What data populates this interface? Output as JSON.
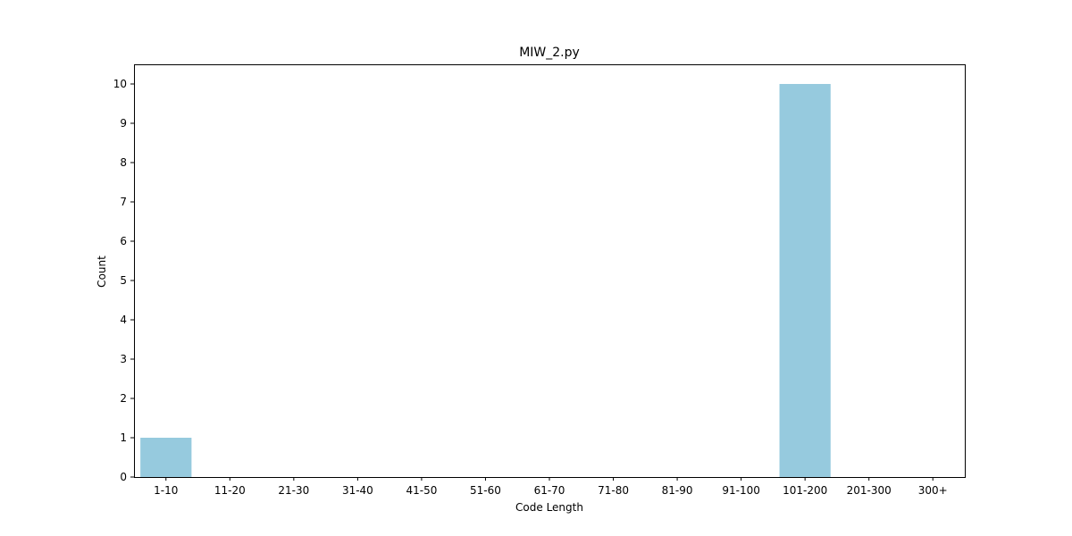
{
  "chart_data": {
    "type": "bar",
    "title": "MIW_2.py",
    "xlabel": "Code Length",
    "ylabel": "Count",
    "categories": [
      "1-10",
      "11-20",
      "21-30",
      "31-40",
      "41-50",
      "51-60",
      "61-70",
      "71-80",
      "81-90",
      "91-100",
      "101-200",
      "201-300",
      "300+"
    ],
    "values": [
      1,
      0,
      0,
      0,
      0,
      0,
      0,
      0,
      0,
      0,
      10,
      0,
      0
    ],
    "ylim": [
      0,
      10.5
    ],
    "yticks": [
      0,
      1,
      2,
      3,
      4,
      5,
      6,
      7,
      8,
      9,
      10
    ],
    "grid": false,
    "legend": "none",
    "bar_color": "#96cade"
  }
}
